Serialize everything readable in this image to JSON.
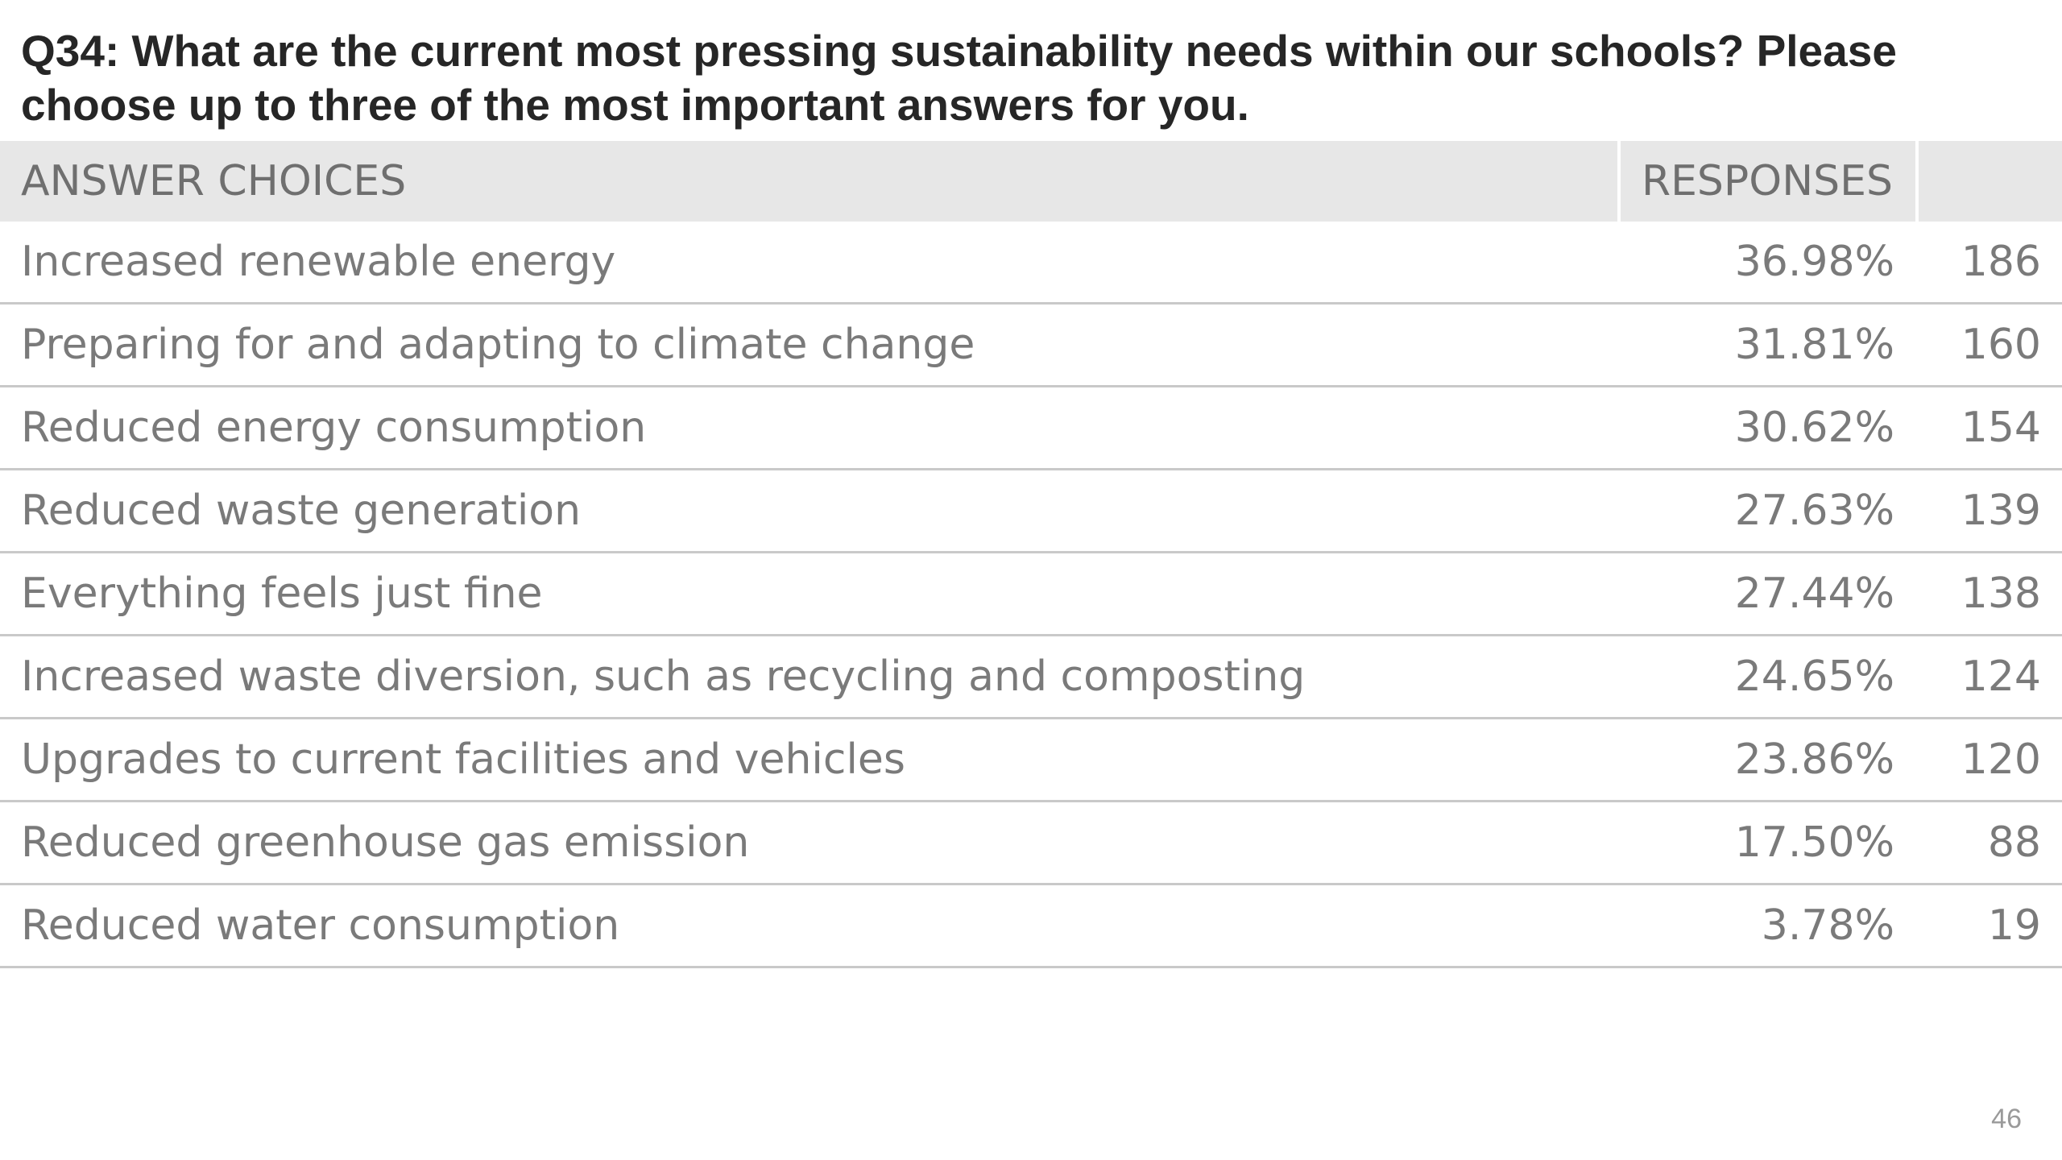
{
  "title": "Q34: What are the current most pressing sustainability needs within our schools? Please choose up to three of the most important answers for you.",
  "table": {
    "headers": {
      "answer_choices": "ANSWER CHOICES",
      "responses": "RESPONSES"
    },
    "rows": [
      {
        "choice": "Increased renewable energy",
        "percent": "36.98%",
        "count": "186"
      },
      {
        "choice": "Preparing for and adapting to climate change",
        "percent": "31.81%",
        "count": "160"
      },
      {
        "choice": "Reduced energy consumption",
        "percent": "30.62%",
        "count": "154"
      },
      {
        "choice": "Reduced waste generation",
        "percent": "27.63%",
        "count": "139"
      },
      {
        "choice": "Everything feels just fine",
        "percent": "27.44%",
        "count": "138"
      },
      {
        "choice": "Increased waste diversion, such as recycling and composting",
        "percent": "24.65%",
        "count": "124"
      },
      {
        "choice": "Upgrades to current facilities and vehicles",
        "percent": "23.86%",
        "count": "120"
      },
      {
        "choice": "Reduced greenhouse gas emission",
        "percent": "17.50%",
        "count": "88"
      },
      {
        "choice": "Reduced water consumption",
        "percent": "3.78%",
        "count": "19"
      }
    ]
  },
  "page_number": "46"
}
